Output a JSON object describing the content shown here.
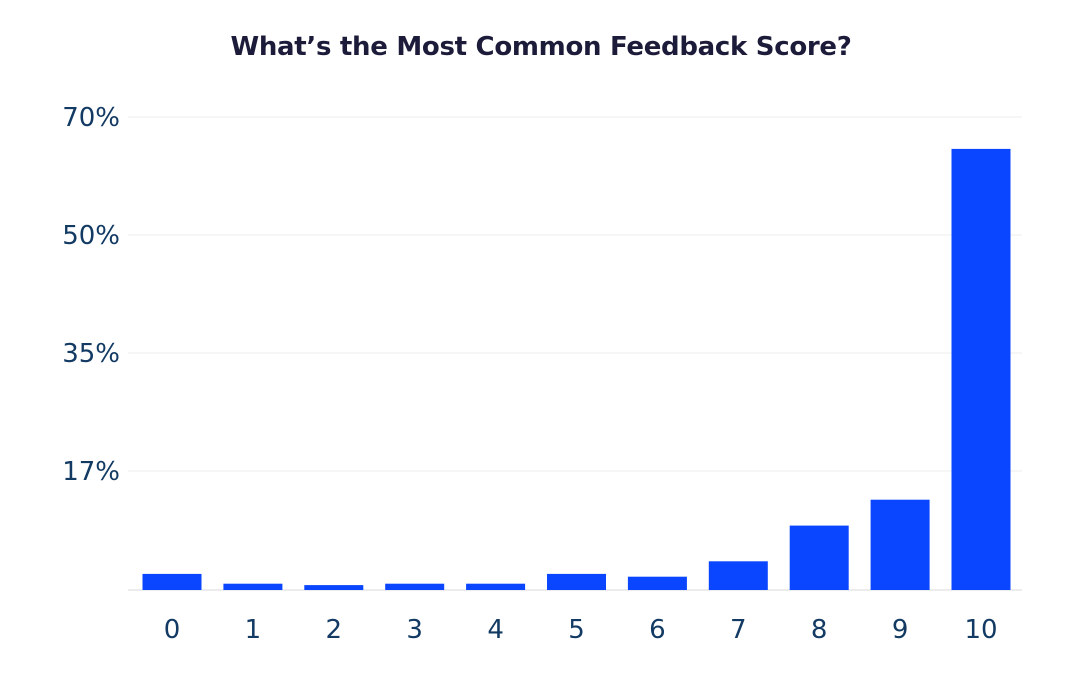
{
  "chart_data": {
    "type": "bar",
    "title": "What’s the Most Common Feedback Score?",
    "xlabel": "",
    "ylabel": "",
    "categories": [
      "0",
      "1",
      "2",
      "3",
      "4",
      "5",
      "6",
      "7",
      "8",
      "9",
      "10"
    ],
    "values": [
      2.3,
      0.9,
      0.7,
      0.9,
      0.9,
      2.3,
      1.9,
      4.1,
      9.2,
      12.9,
      64.6
    ],
    "y_ticks": [
      {
        "label": "17%",
        "value": 17
      },
      {
        "label": "35%",
        "value": 35
      },
      {
        "label": "50%",
        "value": 50
      },
      {
        "label": "70%",
        "value": 70
      }
    ],
    "ylim": [
      0,
      70
    ],
    "grid": true,
    "legend": "none",
    "bar_color": "#0a46ff",
    "text_color": "#123a63",
    "title_color": "#1c1c3a"
  }
}
